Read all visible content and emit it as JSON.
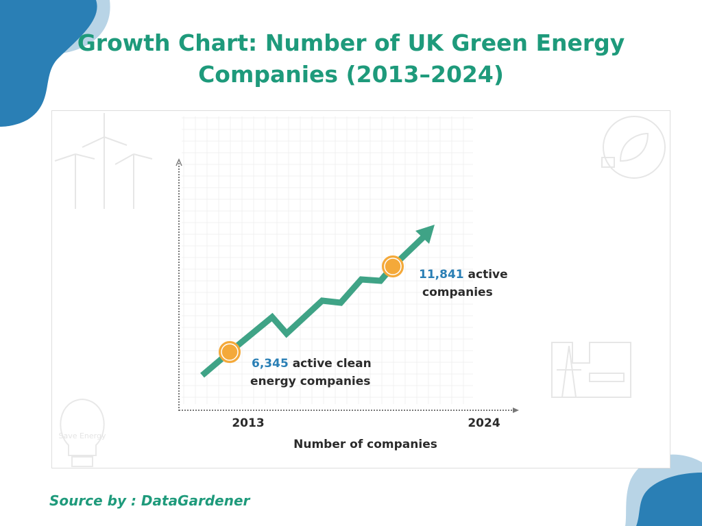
{
  "title_line1": "Growth Chart: Number of UK Green Energy",
  "title_line2": "Companies (2013–2024)",
  "source": "Source by : DataGardener",
  "watermark_text": "Save Energy",
  "colors": {
    "title": "#1e9a7b",
    "line": "#3fa386",
    "marker": "#f4a93a",
    "number": "#2a7fb5",
    "blob": "#2a7fb5",
    "blob_light": "#b8d4e6"
  },
  "chart_data": {
    "type": "line",
    "title": "Growth Chart: Number of UK Green Energy Companies (2013–2024)",
    "xlabel": "Number of companies",
    "ylabel": "",
    "x_ticks": [
      "2013",
      "2024"
    ],
    "grid": true,
    "points": [
      {
        "x": "2013",
        "value": 6345,
        "label_number": "6,345",
        "label_text1": " active clean",
        "label_text2": "energy companies"
      },
      {
        "x": "2024",
        "value": 11841,
        "label_number": "11,841",
        "label_text1": " active",
        "label_text2": "companies"
      }
    ]
  }
}
